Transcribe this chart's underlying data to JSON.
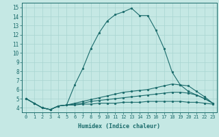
{
  "xlabel": "Humidex (Indice chaleur)",
  "xlim": [
    -0.5,
    23.5
  ],
  "ylim": [
    3.5,
    15.5
  ],
  "xticks": [
    0,
    1,
    2,
    3,
    4,
    5,
    6,
    7,
    8,
    9,
    10,
    11,
    12,
    13,
    14,
    15,
    16,
    17,
    18,
    19,
    20,
    21,
    22,
    23
  ],
  "yticks": [
    4,
    5,
    6,
    7,
    8,
    9,
    10,
    11,
    12,
    13,
    14,
    15
  ],
  "bg_color": "#c5e8e4",
  "line_color": "#1a6b6b",
  "grid_color": "#a8d4d0",
  "lines": [
    [
      5.0,
      4.5,
      4.0,
      3.8,
      4.2,
      4.3,
      6.5,
      8.3,
      10.5,
      12.2,
      13.5,
      14.2,
      14.5,
      14.9,
      14.1,
      14.1,
      12.5,
      10.5,
      7.9,
      6.5,
      5.8,
      5.4,
      5.0,
      4.5
    ],
    [
      5.0,
      4.5,
      4.0,
      3.8,
      4.2,
      4.3,
      4.5,
      4.7,
      4.9,
      5.1,
      5.3,
      5.5,
      5.7,
      5.8,
      5.9,
      6.0,
      6.2,
      6.4,
      6.6,
      6.5,
      6.4,
      5.8,
      5.2,
      4.5
    ],
    [
      5.0,
      4.5,
      4.0,
      3.8,
      4.2,
      4.3,
      4.4,
      4.5,
      4.7,
      4.8,
      4.9,
      5.0,
      5.1,
      5.2,
      5.3,
      5.4,
      5.5,
      5.6,
      5.7,
      5.7,
      5.6,
      5.4,
      5.0,
      4.5
    ],
    [
      5.0,
      4.5,
      4.0,
      3.8,
      4.2,
      4.3,
      4.3,
      4.4,
      4.4,
      4.5,
      4.5,
      4.5,
      4.6,
      4.6,
      4.6,
      4.7,
      4.7,
      4.7,
      4.7,
      4.7,
      4.6,
      4.6,
      4.5,
      4.4
    ]
  ],
  "font_name": "monospace",
  "tick_fontsize_x": 5.0,
  "tick_fontsize_y": 5.5,
  "xlabel_fontsize": 6.0,
  "linewidth": 0.8,
  "markersize": 1.8
}
